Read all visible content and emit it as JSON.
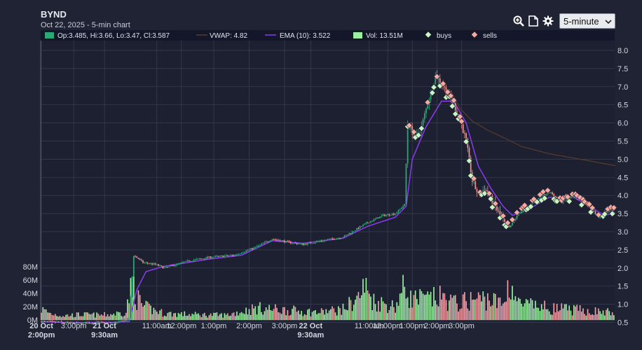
{
  "header": {
    "title": "BYND",
    "subtitle": "Oct 22, 2025 - 5-min chart"
  },
  "toolbar": {
    "icons": [
      "zoom-in-icon",
      "document-icon",
      "gear-icon"
    ],
    "interval": "5-minute",
    "interval_options": [
      "5-minute"
    ]
  },
  "legend": {
    "ohlc": "Op:3.485, Hi:3.66, Lo:3.47, Cl:3.587",
    "vwap": "VWAP: 4.82",
    "ema": "EMA (10): 3.522",
    "volume": "Vol: 13.51M",
    "buys": "buys",
    "sells": "sells"
  },
  "colors": {
    "background": "#1f2334",
    "plot_bg": "#1c2030",
    "grid": "#3a4054",
    "up": "#2aa876",
    "down": "#ef8f8f",
    "ema": "#8a3cf0",
    "vwap": "#5a3a2c",
    "volume_up": "#9af0a0",
    "volume_down": "#f5a0a8",
    "buy_marker": "#c8f5c0",
    "sell_marker": "#f5a8a0"
  },
  "chart_data": {
    "type": "candlestick",
    "title": "BYND",
    "y_axis": {
      "ticks": [
        0.5,
        1.0,
        1.5,
        2.0,
        2.5,
        3.0,
        3.5,
        4.0,
        4.5,
        5.0,
        5.5,
        6.0,
        6.5,
        7.0,
        7.5,
        8.0
      ],
      "range": [
        0.5,
        8.2
      ]
    },
    "volume_axis": {
      "ticks": [
        "0M",
        "20M",
        "40M",
        "60M",
        "80M"
      ],
      "range_millions": [
        0,
        80
      ]
    },
    "x_axis": {
      "ticks": [
        {
          "label": "20 Oct",
          "sub": "2:00pm"
        },
        {
          "label": "3:00pm",
          "sub": ""
        },
        {
          "label": "21 Oct",
          "sub": "9:30am"
        },
        {
          "label": "11:00am",
          "sub": ""
        },
        {
          "label": "12:00pm",
          "sub": ""
        },
        {
          "label": "1:00pm",
          "sub": ""
        },
        {
          "label": "2:00pm",
          "sub": ""
        },
        {
          "label": "3:00pm",
          "sub": ""
        },
        {
          "label": "22 Oct",
          "sub": "9:30am"
        },
        {
          "label": "11:00am",
          "sub": ""
        },
        {
          "label": "12:00pm",
          "sub": ""
        },
        {
          "label": "1:00pm",
          "sub": ""
        },
        {
          "label": "2:00pm",
          "sub": ""
        },
        {
          "label": "3:00pm",
          "sub": ""
        }
      ]
    },
    "price_path": [
      [
        0,
        0.52
      ],
      [
        12,
        0.5
      ],
      [
        24,
        0.47
      ],
      [
        36,
        0.5
      ],
      [
        48,
        0.48
      ],
      [
        57,
        0.6
      ],
      [
        60,
        2.35
      ],
      [
        66,
        2.15
      ],
      [
        74,
        2.1
      ],
      [
        80,
        2.0
      ],
      [
        88,
        2.1
      ],
      [
        96,
        2.2
      ],
      [
        110,
        2.3
      ],
      [
        125,
        2.35
      ],
      [
        138,
        2.55
      ],
      [
        150,
        2.8
      ],
      [
        162,
        2.7
      ],
      [
        170,
        2.65
      ],
      [
        182,
        2.75
      ],
      [
        196,
        2.85
      ],
      [
        204,
        3.05
      ],
      [
        212,
        3.25
      ],
      [
        222,
        3.45
      ],
      [
        230,
        3.5
      ],
      [
        236,
        3.75
      ],
      [
        238,
        6.0
      ],
      [
        243,
        5.6
      ],
      [
        247,
        5.9
      ],
      [
        252,
        6.7
      ],
      [
        256,
        7.3
      ],
      [
        260,
        7.1
      ],
      [
        264,
        6.8
      ],
      [
        268,
        6.5
      ],
      [
        272,
        6.1
      ],
      [
        276,
        5.5
      ],
      [
        280,
        4.4
      ],
      [
        284,
        4.0
      ],
      [
        288,
        4.2
      ],
      [
        292,
        3.9
      ],
      [
        296,
        3.6
      ],
      [
        300,
        3.3
      ],
      [
        304,
        3.1
      ],
      [
        310,
        3.5
      ],
      [
        316,
        3.7
      ],
      [
        322,
        3.9
      ],
      [
        330,
        4.1
      ],
      [
        338,
        3.8
      ],
      [
        346,
        4.0
      ],
      [
        352,
        3.8
      ],
      [
        358,
        3.6
      ],
      [
        362,
        3.4
      ],
      [
        366,
        3.55
      ],
      [
        373,
        3.6
      ]
    ],
    "ema_path": [
      [
        0,
        0.52
      ],
      [
        20,
        0.49
      ],
      [
        40,
        0.49
      ],
      [
        57,
        0.52
      ],
      [
        62,
        1.4
      ],
      [
        68,
        1.9
      ],
      [
        80,
        2.05
      ],
      [
        110,
        2.25
      ],
      [
        130,
        2.35
      ],
      [
        150,
        2.75
      ],
      [
        170,
        2.68
      ],
      [
        196,
        2.82
      ],
      [
        212,
        3.15
      ],
      [
        230,
        3.4
      ],
      [
        237,
        3.7
      ],
      [
        241,
        5.0
      ],
      [
        250,
        5.9
      ],
      [
        260,
        6.6
      ],
      [
        268,
        6.6
      ],
      [
        276,
        6.0
      ],
      [
        284,
        4.8
      ],
      [
        292,
        4.2
      ],
      [
        300,
        3.7
      ],
      [
        306,
        3.45
      ],
      [
        316,
        3.6
      ],
      [
        330,
        3.95
      ],
      [
        346,
        3.95
      ],
      [
        358,
        3.65
      ],
      [
        366,
        3.45
      ],
      [
        373,
        3.52
      ]
    ],
    "vwap_path": [
      [
        266,
        6.9
      ],
      [
        272,
        6.4
      ],
      [
        280,
        6.05
      ],
      [
        290,
        5.8
      ],
      [
        300,
        5.6
      ],
      [
        312,
        5.35
      ],
      [
        330,
        5.15
      ],
      [
        350,
        5.0
      ],
      [
        373,
        4.82
      ]
    ],
    "volume_series": {
      "unit": "M",
      "legend_value": 13.51,
      "peaks": [
        [
          0,
          20
        ],
        [
          6,
          12
        ],
        [
          14,
          8
        ],
        [
          26,
          10
        ],
        [
          40,
          9
        ],
        [
          55,
          14
        ],
        [
          57,
          45
        ],
        [
          60,
          70
        ],
        [
          62,
          42
        ],
        [
          66,
          25
        ],
        [
          80,
          12
        ],
        [
          100,
          10
        ],
        [
          120,
          9
        ],
        [
          140,
          22
        ],
        [
          160,
          18
        ],
        [
          180,
          14
        ],
        [
          196,
          20
        ],
        [
          206,
          42
        ],
        [
          210,
          62
        ],
        [
          216,
          35
        ],
        [
          230,
          25
        ],
        [
          236,
          62
        ],
        [
          240,
          40
        ],
        [
          250,
          38
        ],
        [
          260,
          42
        ],
        [
          270,
          30
        ],
        [
          280,
          38
        ],
        [
          290,
          40
        ],
        [
          300,
          28
        ],
        [
          304,
          72
        ],
        [
          310,
          30
        ],
        [
          330,
          22
        ],
        [
          350,
          18
        ],
        [
          373,
          13.5
        ]
      ]
    }
  }
}
